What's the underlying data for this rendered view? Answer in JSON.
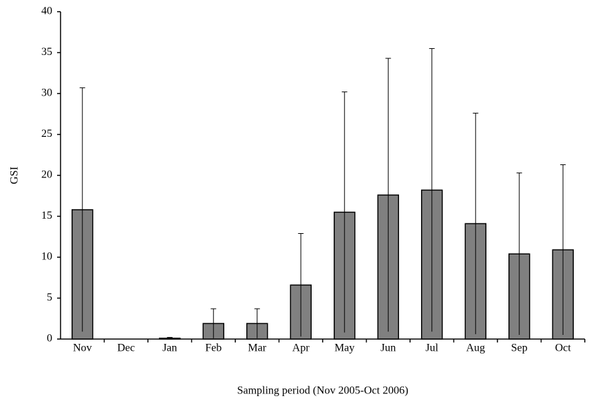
{
  "chart_data": {
    "type": "bar",
    "x_label": "Sampling period (Nov 2005-Oct 2006)",
    "y_label": "GSI",
    "categories": [
      "Nov",
      "Dec",
      "Jan",
      "Feb",
      "Mar",
      "Apr",
      "May",
      "Jun",
      "Jul",
      "Aug",
      "Sep",
      "Oct"
    ],
    "values": [
      15.8,
      0,
      0.1,
      1.9,
      1.9,
      6.6,
      15.5,
      17.6,
      18.2,
      14.1,
      10.4,
      10.9
    ],
    "errors": [
      14.9,
      0,
      0.1,
      1.8,
      1.8,
      6.3,
      14.7,
      16.7,
      17.3,
      13.5,
      9.9,
      10.4
    ],
    "color": "#808080",
    "ylim": [
      0,
      40
    ],
    "yticks": [
      0,
      5,
      10,
      15,
      20,
      25,
      30,
      35,
      40
    ],
    "grid": false
  }
}
